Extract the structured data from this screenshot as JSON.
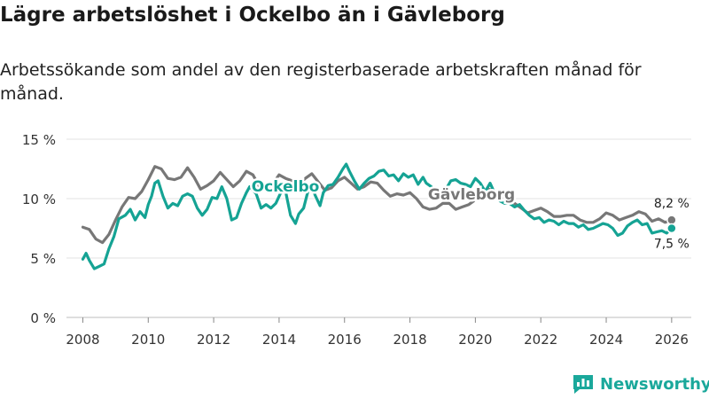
{
  "title": "Lägre arbetslöshet i Ockelbo än i Gävleborg",
  "subtitle": "Arbetssökande som andel av den registerbaserade arbetskraften månad för månad.",
  "brand": "Newsworthy",
  "brand_color": "#1aa89b",
  "chart_data": {
    "type": "line",
    "title": "Lägre arbetslöshet i Ockelbo än i Gävleborg",
    "xlabel": "",
    "ylabel": "",
    "xlim": [
      2007.5,
      2026.6
    ],
    "ylim": [
      0,
      15
    ],
    "x_ticks": [
      2008,
      2010,
      2012,
      2014,
      2016,
      2018,
      2020,
      2022,
      2024,
      2026
    ],
    "x_tick_labels": [
      "2008",
      "2010",
      "2012",
      "2014",
      "2016",
      "2018",
      "2020",
      "2022",
      "2024",
      "2026"
    ],
    "y_ticks": [
      0,
      5,
      10,
      15
    ],
    "y_tick_labels": [
      "0 %",
      "5 %",
      "10 %",
      "15 %"
    ],
    "grid": true,
    "series": [
      {
        "name": "Gävleborg",
        "label": "Gävleborg",
        "color": "#777777",
        "end_label": "8,2 %",
        "points": [
          [
            2008.0,
            7.6
          ],
          [
            2008.2,
            7.4
          ],
          [
            2008.4,
            6.6
          ],
          [
            2008.6,
            6.3
          ],
          [
            2008.8,
            7.0
          ],
          [
            2009.0,
            8.2
          ],
          [
            2009.2,
            9.3
          ],
          [
            2009.4,
            10.1
          ],
          [
            2009.6,
            10.0
          ],
          [
            2009.8,
            10.6
          ],
          [
            2010.0,
            11.6
          ],
          [
            2010.2,
            12.7
          ],
          [
            2010.4,
            12.5
          ],
          [
            2010.6,
            11.7
          ],
          [
            2010.8,
            11.6
          ],
          [
            2011.0,
            11.8
          ],
          [
            2011.2,
            12.6
          ],
          [
            2011.4,
            11.8
          ],
          [
            2011.6,
            10.8
          ],
          [
            2011.8,
            11.1
          ],
          [
            2012.0,
            11.5
          ],
          [
            2012.2,
            12.2
          ],
          [
            2012.4,
            11.6
          ],
          [
            2012.6,
            11.0
          ],
          [
            2012.8,
            11.5
          ],
          [
            2013.0,
            12.3
          ],
          [
            2013.2,
            12.0
          ],
          [
            2013.4,
            11.0
          ],
          [
            2013.6,
            10.8
          ],
          [
            2013.8,
            11.2
          ],
          [
            2014.0,
            12.0
          ],
          [
            2014.2,
            11.7
          ],
          [
            2014.4,
            11.5
          ],
          [
            2014.6,
            11.2
          ],
          [
            2014.8,
            11.7
          ],
          [
            2015.0,
            12.1
          ],
          [
            2015.2,
            11.4
          ],
          [
            2015.4,
            10.7
          ],
          [
            2015.6,
            10.9
          ],
          [
            2015.8,
            11.5
          ],
          [
            2016.0,
            11.8
          ],
          [
            2016.2,
            11.3
          ],
          [
            2016.4,
            10.8
          ],
          [
            2016.6,
            11.0
          ],
          [
            2016.8,
            11.4
          ],
          [
            2017.0,
            11.3
          ],
          [
            2017.2,
            10.7
          ],
          [
            2017.4,
            10.2
          ],
          [
            2017.6,
            10.4
          ],
          [
            2017.8,
            10.3
          ],
          [
            2018.0,
            10.5
          ],
          [
            2018.2,
            10.0
          ],
          [
            2018.4,
            9.3
          ],
          [
            2018.6,
            9.1
          ],
          [
            2018.8,
            9.2
          ],
          [
            2019.0,
            9.6
          ],
          [
            2019.2,
            9.6
          ],
          [
            2019.4,
            9.1
          ],
          [
            2019.6,
            9.3
          ],
          [
            2019.8,
            9.5
          ],
          [
            2020.0,
            9.9
          ],
          [
            2020.2,
            10.1
          ],
          [
            2020.4,
            10.8
          ],
          [
            2020.6,
            10.6
          ],
          [
            2020.8,
            10.2
          ],
          [
            2021.0,
            10.0
          ],
          [
            2021.2,
            9.6
          ],
          [
            2021.4,
            9.2
          ],
          [
            2021.6,
            8.8
          ],
          [
            2021.8,
            9.0
          ],
          [
            2022.0,
            9.2
          ],
          [
            2022.2,
            8.9
          ],
          [
            2022.4,
            8.5
          ],
          [
            2022.6,
            8.5
          ],
          [
            2022.8,
            8.6
          ],
          [
            2023.0,
            8.6
          ],
          [
            2023.2,
            8.2
          ],
          [
            2023.4,
            8.0
          ],
          [
            2023.6,
            8.0
          ],
          [
            2023.8,
            8.3
          ],
          [
            2024.0,
            8.8
          ],
          [
            2024.2,
            8.6
          ],
          [
            2024.4,
            8.2
          ],
          [
            2024.6,
            8.4
          ],
          [
            2024.8,
            8.6
          ],
          [
            2025.0,
            8.9
          ],
          [
            2025.2,
            8.7
          ],
          [
            2025.4,
            8.1
          ],
          [
            2025.6,
            8.3
          ],
          [
            2025.8,
            8.0
          ],
          [
            2026.0,
            8.2
          ]
        ]
      },
      {
        "name": "Ockelbo",
        "label": "Ockelbo",
        "color": "#15a394",
        "end_label": "7,5 %",
        "points": [
          [
            2008.0,
            4.9
          ],
          [
            2008.1,
            5.4
          ],
          [
            2008.2,
            4.8
          ],
          [
            2008.35,
            4.1
          ],
          [
            2008.5,
            4.3
          ],
          [
            2008.65,
            4.5
          ],
          [
            2008.8,
            5.8
          ],
          [
            2008.95,
            6.8
          ],
          [
            2009.1,
            8.3
          ],
          [
            2009.3,
            8.6
          ],
          [
            2009.45,
            9.1
          ],
          [
            2009.6,
            8.2
          ],
          [
            2009.75,
            8.9
          ],
          [
            2009.9,
            8.4
          ],
          [
            2010.0,
            9.5
          ],
          [
            2010.1,
            10.2
          ],
          [
            2010.2,
            11.3
          ],
          [
            2010.3,
            11.5
          ],
          [
            2010.45,
            10.2
          ],
          [
            2010.6,
            9.2
          ],
          [
            2010.75,
            9.6
          ],
          [
            2010.9,
            9.4
          ],
          [
            2011.05,
            10.2
          ],
          [
            2011.2,
            10.4
          ],
          [
            2011.35,
            10.2
          ],
          [
            2011.5,
            9.2
          ],
          [
            2011.65,
            8.6
          ],
          [
            2011.8,
            9.1
          ],
          [
            2011.95,
            10.1
          ],
          [
            2012.1,
            10.0
          ],
          [
            2012.25,
            11.0
          ],
          [
            2012.4,
            10.0
          ],
          [
            2012.55,
            8.2
          ],
          [
            2012.7,
            8.4
          ],
          [
            2012.85,
            9.6
          ],
          [
            2013.0,
            10.5
          ],
          [
            2013.1,
            11.0
          ],
          [
            2013.3,
            10.4
          ],
          [
            2013.45,
            9.2
          ],
          [
            2013.6,
            9.5
          ],
          [
            2013.75,
            9.2
          ],
          [
            2013.9,
            9.6
          ],
          [
            2014.05,
            10.5
          ],
          [
            2014.2,
            10.6
          ],
          [
            2014.35,
            8.6
          ],
          [
            2014.5,
            7.9
          ],
          [
            2014.6,
            8.7
          ],
          [
            2014.75,
            9.2
          ],
          [
            2014.9,
            10.8
          ],
          [
            2015.0,
            11.2
          ],
          [
            2015.1,
            10.3
          ],
          [
            2015.25,
            9.4
          ],
          [
            2015.35,
            10.5
          ],
          [
            2015.5,
            11.1
          ],
          [
            2015.65,
            11.2
          ],
          [
            2015.8,
            11.8
          ],
          [
            2015.95,
            12.5
          ],
          [
            2016.05,
            12.9
          ],
          [
            2016.15,
            12.3
          ],
          [
            2016.3,
            11.5
          ],
          [
            2016.45,
            10.8
          ],
          [
            2016.6,
            11.3
          ],
          [
            2016.75,
            11.7
          ],
          [
            2016.9,
            11.9
          ],
          [
            2017.05,
            12.3
          ],
          [
            2017.2,
            12.4
          ],
          [
            2017.35,
            11.9
          ],
          [
            2017.5,
            12.0
          ],
          [
            2017.65,
            11.5
          ],
          [
            2017.8,
            12.1
          ],
          [
            2017.95,
            11.8
          ],
          [
            2018.1,
            12.0
          ],
          [
            2018.25,
            11.2
          ],
          [
            2018.4,
            11.8
          ],
          [
            2018.5,
            11.3
          ],
          [
            2018.65,
            11.0
          ],
          [
            2018.8,
            10.5
          ],
          [
            2018.95,
            10.2
          ],
          [
            2019.1,
            10.8
          ],
          [
            2019.25,
            11.5
          ],
          [
            2019.4,
            11.6
          ],
          [
            2019.55,
            11.3
          ],
          [
            2019.7,
            11.2
          ],
          [
            2019.85,
            11.0
          ],
          [
            2020.0,
            11.7
          ],
          [
            2020.15,
            11.3
          ],
          [
            2020.3,
            10.6
          ],
          [
            2020.45,
            11.3
          ],
          [
            2020.6,
            10.4
          ],
          [
            2020.75,
            9.8
          ],
          [
            2020.9,
            9.6
          ],
          [
            2021.05,
            9.6
          ],
          [
            2021.2,
            9.3
          ],
          [
            2021.35,
            9.5
          ],
          [
            2021.5,
            9.0
          ],
          [
            2021.65,
            8.6
          ],
          [
            2021.8,
            8.3
          ],
          [
            2021.95,
            8.4
          ],
          [
            2022.1,
            8.0
          ],
          [
            2022.25,
            8.2
          ],
          [
            2022.4,
            8.1
          ],
          [
            2022.55,
            7.8
          ],
          [
            2022.7,
            8.1
          ],
          [
            2022.85,
            7.9
          ],
          [
            2023.0,
            7.9
          ],
          [
            2023.15,
            7.6
          ],
          [
            2023.3,
            7.8
          ],
          [
            2023.45,
            7.4
          ],
          [
            2023.6,
            7.5
          ],
          [
            2023.75,
            7.7
          ],
          [
            2023.9,
            7.9
          ],
          [
            2024.05,
            7.8
          ],
          [
            2024.2,
            7.5
          ],
          [
            2024.35,
            6.9
          ],
          [
            2024.5,
            7.1
          ],
          [
            2024.65,
            7.7
          ],
          [
            2024.8,
            8.0
          ],
          [
            2024.95,
            8.2
          ],
          [
            2025.1,
            7.8
          ],
          [
            2025.25,
            7.9
          ],
          [
            2025.4,
            7.1
          ],
          [
            2025.55,
            7.2
          ],
          [
            2025.7,
            7.3
          ],
          [
            2025.85,
            7.1
          ],
          [
            2026.0,
            7.5
          ]
        ]
      }
    ]
  }
}
